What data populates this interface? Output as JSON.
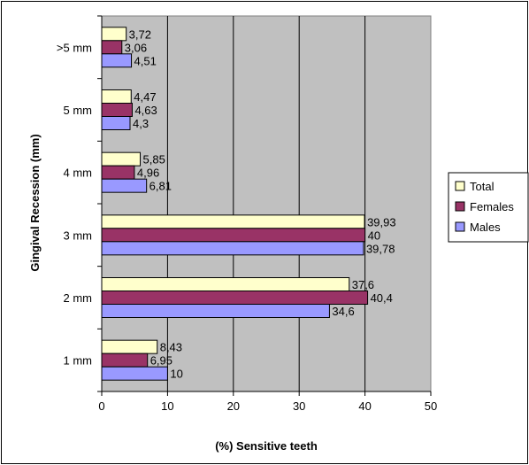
{
  "chart_data": {
    "type": "bar",
    "orientation": "horizontal",
    "categories": [
      "1 mm",
      "2 mm",
      "3 mm",
      "4 mm",
      "5 mm",
      ">5 mm"
    ],
    "series": [
      {
        "name": "Total",
        "values": [
          8.43,
          37.6,
          39.93,
          5.85,
          4.47,
          3.72
        ],
        "labels": [
          "8,43",
          "37,6",
          "39,93",
          "5,85",
          "4,47",
          "3,72"
        ],
        "color": "#ffffcc"
      },
      {
        "name": "Females",
        "values": [
          6.95,
          40.4,
          40,
          4.96,
          4.63,
          3.06
        ],
        "labels": [
          "6,95",
          "40,4",
          "40",
          "4,96",
          "4,63",
          "3,06"
        ],
        "color": "#993366"
      },
      {
        "name": "Males",
        "values": [
          10,
          34.6,
          39.78,
          6.81,
          4.3,
          4.51
        ],
        "labels": [
          "10",
          "34,6",
          "39,78",
          "6,81",
          "4,3",
          "4,51"
        ],
        "color": "#9999ff"
      }
    ],
    "xlabel": "(%) Sensitive teeth",
    "ylabel": "Gingival Recession (mm)",
    "xlim": [
      0,
      50
    ],
    "xticks": [
      0,
      10,
      20,
      30,
      40,
      50
    ],
    "grid": true,
    "plot_background": "#c0c0c0",
    "legend_position": "right"
  }
}
